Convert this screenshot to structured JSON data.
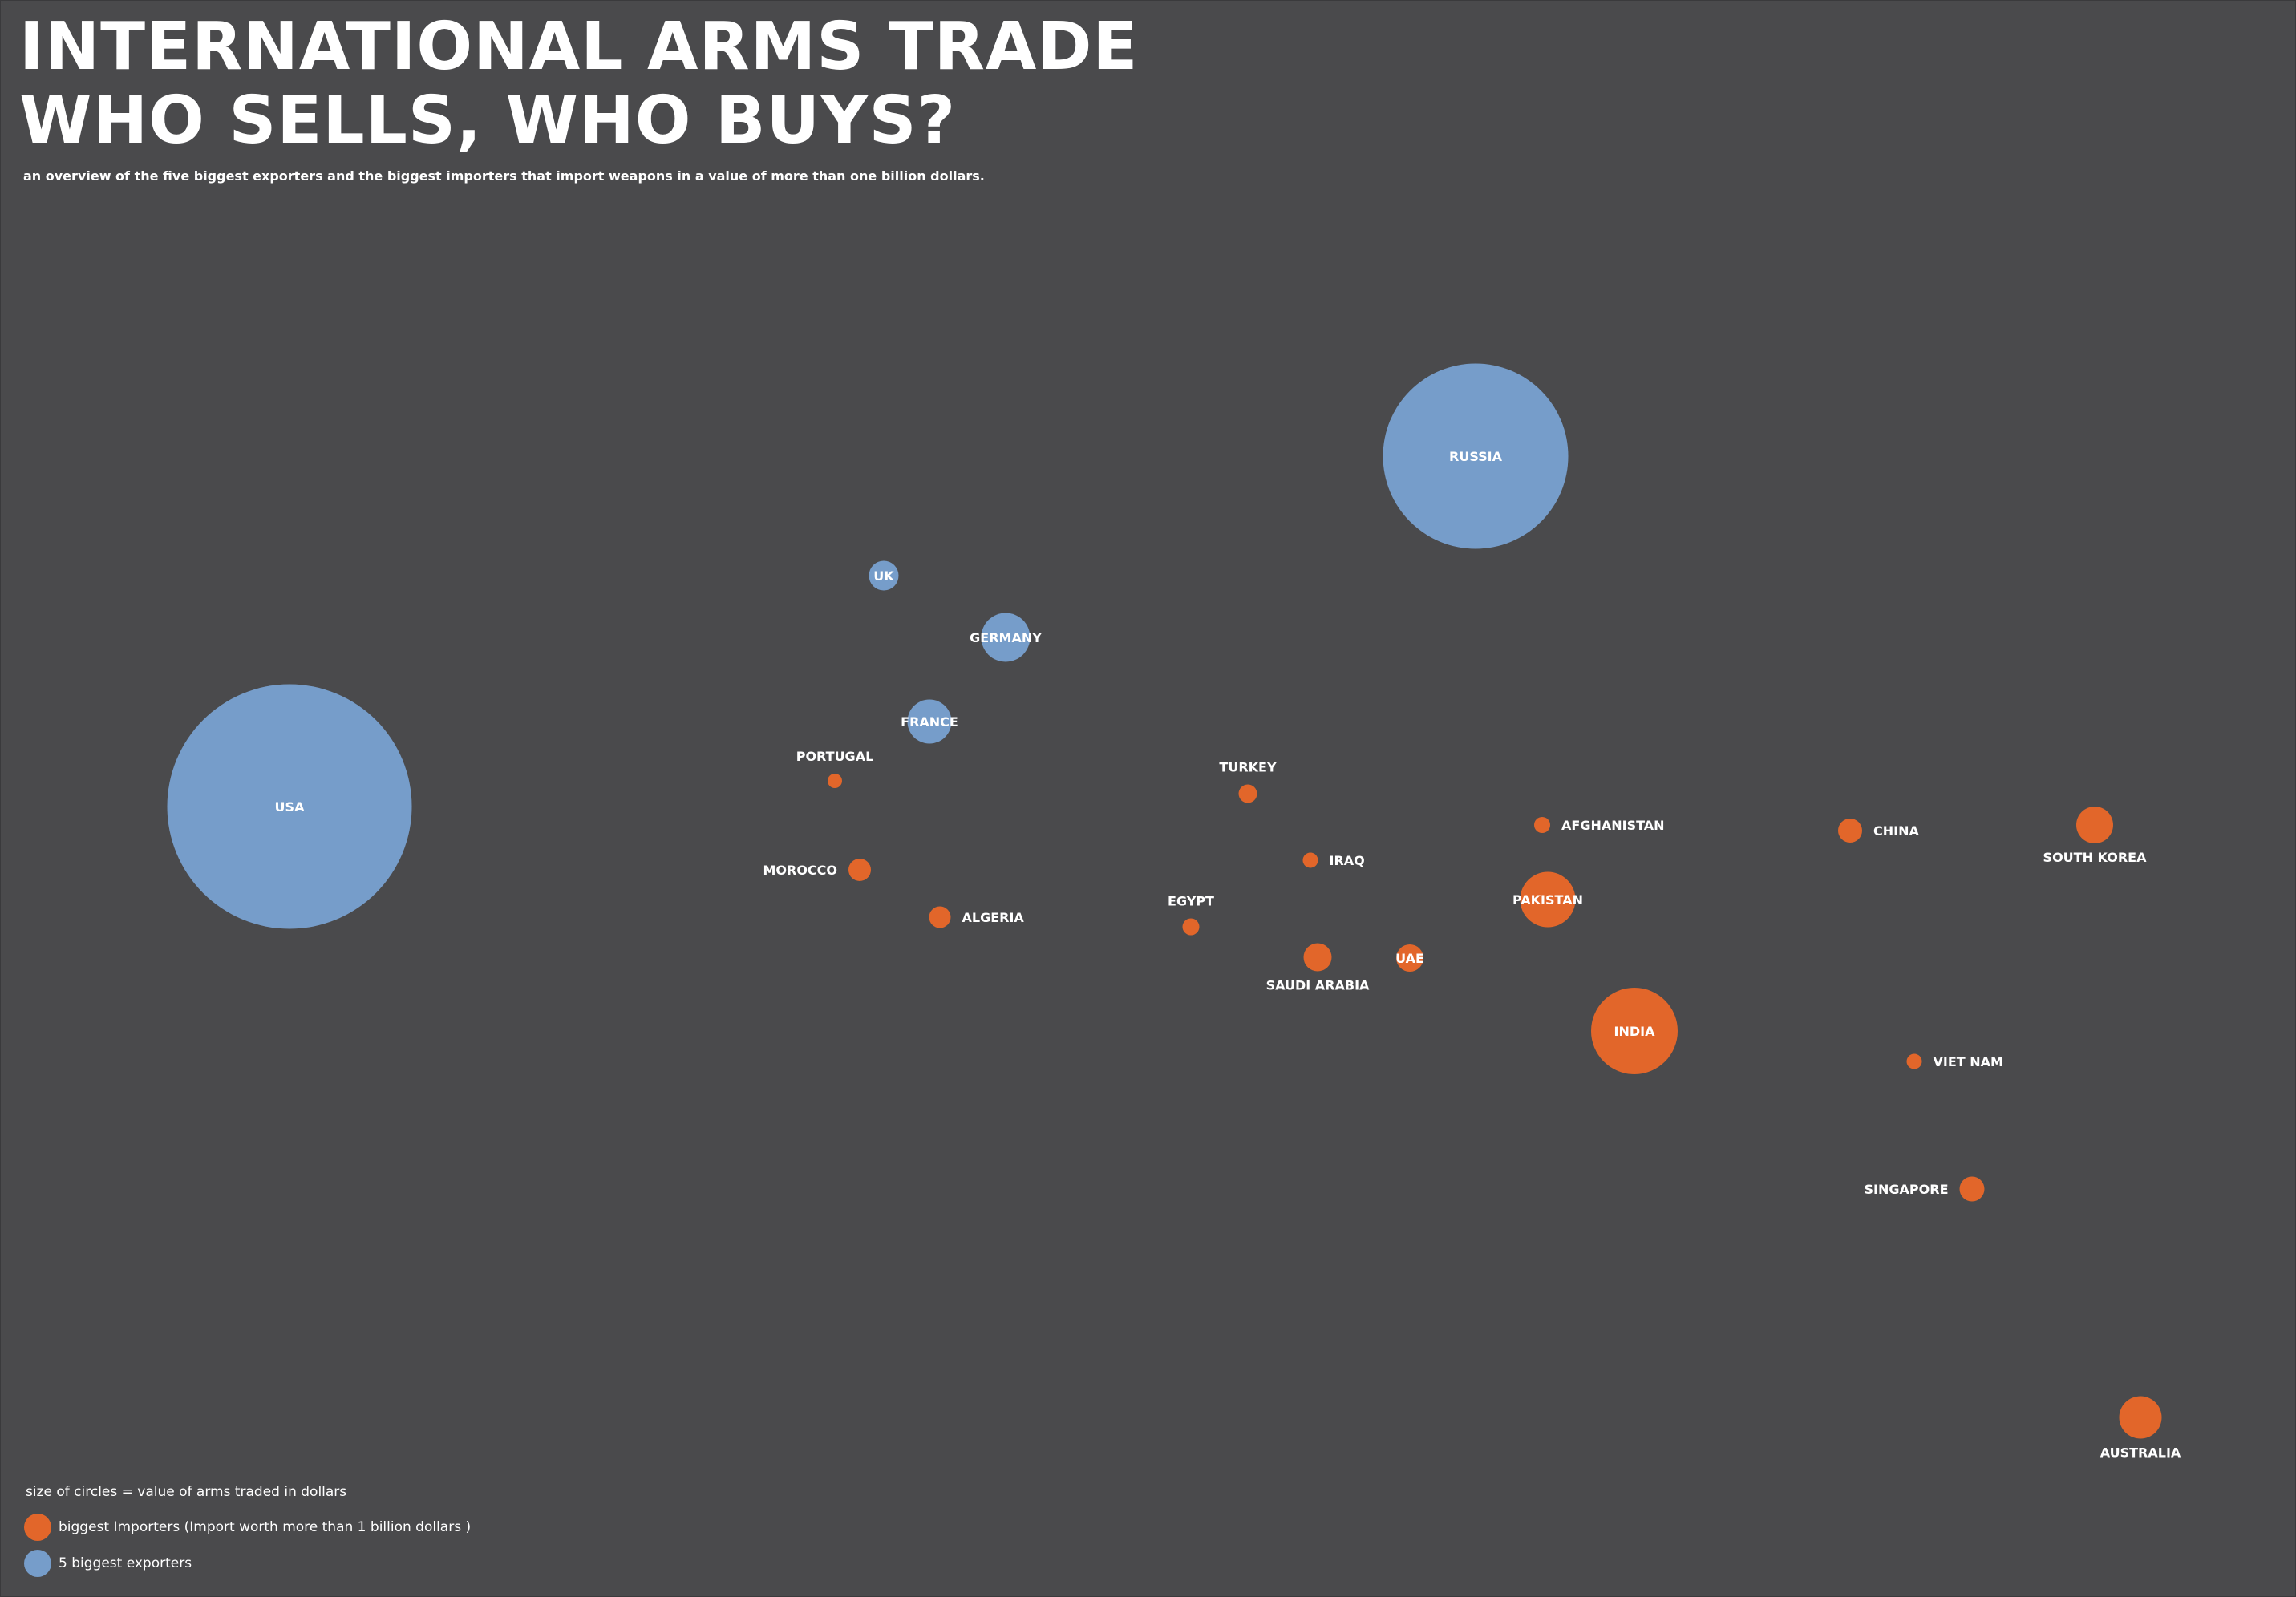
{
  "title_line1": "INTERNATIONAL ARMS TRADE",
  "title_line2": "WHO SELLS, WHO BUYS?",
  "subtitle": "an overview of the five biggest exporters and the biggest importers that import weapons in a value of more than one billion dollars.",
  "legend": {
    "size_note": "size of circles = value of arms traded in dollars",
    "importers": "biggest Importers (Import worth more than 1 billion dollars )",
    "exporters": "5 biggest exporters"
  },
  "colors": {
    "background": "#4a4a4c",
    "exporter": "#769dca",
    "importer": "#e2662a",
    "text": "#ffffff"
  },
  "chart_data": {
    "type": "bubble",
    "size_encoding": "value of arms traded in dollars",
    "series": [
      {
        "name": "5 biggest exporters",
        "color": "#769dca",
        "points": [
          {
            "label": "USA",
            "relative_size": 305
          },
          {
            "label": "RUSSIA",
            "relative_size": 231
          },
          {
            "label": "GERMANY",
            "relative_size": 61
          },
          {
            "label": "FRANCE",
            "relative_size": 55
          },
          {
            "label": "UK",
            "relative_size": 37
          }
        ]
      },
      {
        "name": "biggest Importers (Import worth more than 1 billion dollars )",
        "color": "#e2662a",
        "points": [
          {
            "label": "INDIA",
            "relative_size": 108
          },
          {
            "label": "PAKISTAN",
            "relative_size": 69
          },
          {
            "label": "AUSTRALIA",
            "relative_size": 53
          },
          {
            "label": "SOUTH KOREA",
            "relative_size": 46
          },
          {
            "label": "SAUDI ARABIA",
            "relative_size": 35
          },
          {
            "label": "UAE",
            "relative_size": 34
          },
          {
            "label": "SINGAPORE",
            "relative_size": 31
          },
          {
            "label": "CHINA",
            "relative_size": 30
          },
          {
            "label": "MOROCCO",
            "relative_size": 28
          },
          {
            "label": "ALGERIA",
            "relative_size": 27
          },
          {
            "label": "TURKEY",
            "relative_size": 23
          },
          {
            "label": "EGYPT",
            "relative_size": 21
          },
          {
            "label": "AFGHANISTAN",
            "relative_size": 20
          },
          {
            "label": "IRAQ",
            "relative_size": 19
          },
          {
            "label": "VIET NAM",
            "relative_size": 19
          },
          {
            "label": "PORTUGAL",
            "relative_size": 18
          }
        ]
      }
    ]
  }
}
